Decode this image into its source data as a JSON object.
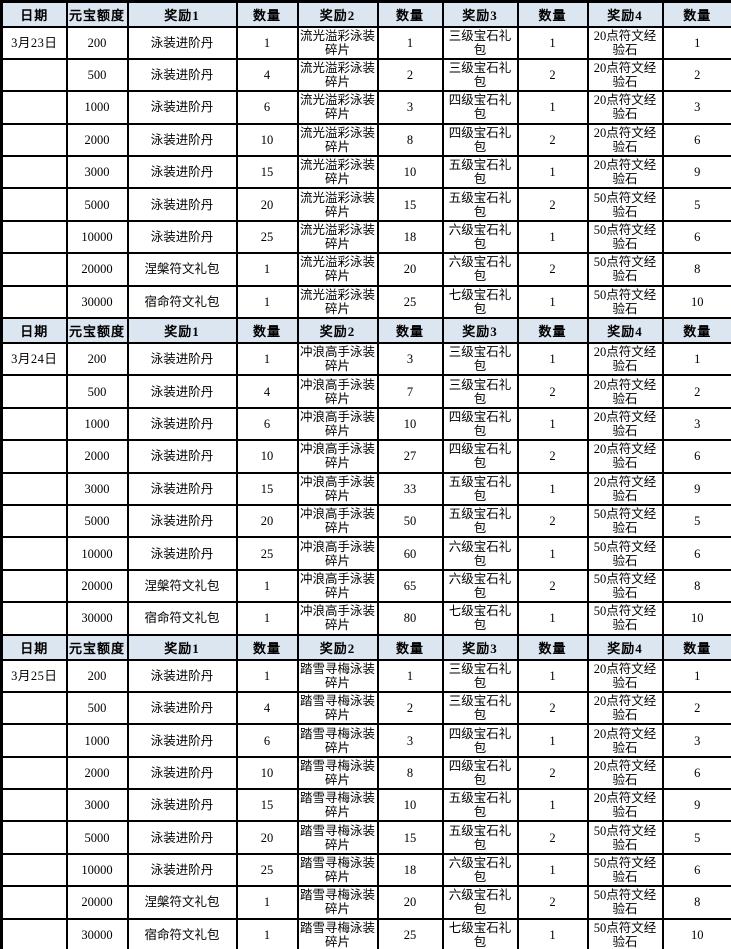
{
  "table": {
    "columns": [
      "日期",
      "元宝额度",
      "奖励1",
      "数量",
      "奖励2",
      "数量",
      "奖励3",
      "数量",
      "奖励4",
      "数量"
    ],
    "sections": [
      {
        "date": "3月23日",
        "rows": [
          [
            "200",
            "泳装进阶丹",
            "1",
            "流光溢彩泳装碎片",
            "1",
            "三级宝石礼包",
            "1",
            "20点符文经验石",
            "1"
          ],
          [
            "500",
            "泳装进阶丹",
            "4",
            "流光溢彩泳装碎片",
            "2",
            "三级宝石礼包",
            "2",
            "20点符文经验石",
            "2"
          ],
          [
            "1000",
            "泳装进阶丹",
            "6",
            "流光溢彩泳装碎片",
            "3",
            "四级宝石礼包",
            "1",
            "20点符文经验石",
            "3"
          ],
          [
            "2000",
            "泳装进阶丹",
            "10",
            "流光溢彩泳装碎片",
            "8",
            "四级宝石礼包",
            "2",
            "20点符文经验石",
            "6"
          ],
          [
            "3000",
            "泳装进阶丹",
            "15",
            "流光溢彩泳装碎片",
            "10",
            "五级宝石礼包",
            "1",
            "20点符文经验石",
            "9"
          ],
          [
            "5000",
            "泳装进阶丹",
            "20",
            "流光溢彩泳装碎片",
            "15",
            "五级宝石礼包",
            "2",
            "50点符文经验石",
            "5"
          ],
          [
            "10000",
            "泳装进阶丹",
            "25",
            "流光溢彩泳装碎片",
            "18",
            "六级宝石礼包",
            "1",
            "50点符文经验石",
            "6"
          ],
          [
            "20000",
            "涅槃符文礼包",
            "1",
            "流光溢彩泳装碎片",
            "20",
            "六级宝石礼包",
            "2",
            "50点符文经验石",
            "8"
          ],
          [
            "30000",
            "宿命符文礼包",
            "1",
            "流光溢彩泳装碎片",
            "25",
            "七级宝石礼包",
            "1",
            "50点符文经验石",
            "10"
          ]
        ]
      },
      {
        "date": "3月24日",
        "rows": [
          [
            "200",
            "泳装进阶丹",
            "1",
            "冲浪高手泳装碎片",
            "3",
            "三级宝石礼包",
            "1",
            "20点符文经验石",
            "1"
          ],
          [
            "500",
            "泳装进阶丹",
            "4",
            "冲浪高手泳装碎片",
            "7",
            "三级宝石礼包",
            "2",
            "20点符文经验石",
            "2"
          ],
          [
            "1000",
            "泳装进阶丹",
            "6",
            "冲浪高手泳装碎片",
            "10",
            "四级宝石礼包",
            "1",
            "20点符文经验石",
            "3"
          ],
          [
            "2000",
            "泳装进阶丹",
            "10",
            "冲浪高手泳装碎片",
            "27",
            "四级宝石礼包",
            "2",
            "20点符文经验石",
            "6"
          ],
          [
            "3000",
            "泳装进阶丹",
            "15",
            "冲浪高手泳装碎片",
            "33",
            "五级宝石礼包",
            "1",
            "20点符文经验石",
            "9"
          ],
          [
            "5000",
            "泳装进阶丹",
            "20",
            "冲浪高手泳装碎片",
            "50",
            "五级宝石礼包",
            "2",
            "50点符文经验石",
            "5"
          ],
          [
            "10000",
            "泳装进阶丹",
            "25",
            "冲浪高手泳装碎片",
            "60",
            "六级宝石礼包",
            "1",
            "50点符文经验石",
            "6"
          ],
          [
            "20000",
            "涅槃符文礼包",
            "1",
            "冲浪高手泳装碎片",
            "65",
            "六级宝石礼包",
            "2",
            "50点符文经验石",
            "8"
          ],
          [
            "30000",
            "宿命符文礼包",
            "1",
            "冲浪高手泳装碎片",
            "80",
            "七级宝石礼包",
            "1",
            "50点符文经验石",
            "10"
          ]
        ]
      },
      {
        "date": "3月25日",
        "rows": [
          [
            "200",
            "泳装进阶丹",
            "1",
            "踏雪寻梅泳装碎片",
            "1",
            "三级宝石礼包",
            "1",
            "20点符文经验石",
            "1"
          ],
          [
            "500",
            "泳装进阶丹",
            "4",
            "踏雪寻梅泳装碎片",
            "2",
            "三级宝石礼包",
            "2",
            "20点符文经验石",
            "2"
          ],
          [
            "1000",
            "泳装进阶丹",
            "6",
            "踏雪寻梅泳装碎片",
            "3",
            "四级宝石礼包",
            "1",
            "20点符文经验石",
            "3"
          ],
          [
            "2000",
            "泳装进阶丹",
            "10",
            "踏雪寻梅泳装碎片",
            "8",
            "四级宝石礼包",
            "2",
            "20点符文经验石",
            "6"
          ],
          [
            "3000",
            "泳装进阶丹",
            "15",
            "踏雪寻梅泳装碎片",
            "10",
            "五级宝石礼包",
            "1",
            "20点符文经验石",
            "9"
          ],
          [
            "5000",
            "泳装进阶丹",
            "20",
            "踏雪寻梅泳装碎片",
            "15",
            "五级宝石礼包",
            "2",
            "50点符文经验石",
            "5"
          ],
          [
            "10000",
            "泳装进阶丹",
            "25",
            "踏雪寻梅泳装碎片",
            "18",
            "六级宝石礼包",
            "1",
            "50点符文经验石",
            "6"
          ],
          [
            "20000",
            "涅槃符文礼包",
            "1",
            "踏雪寻梅泳装碎片",
            "20",
            "六级宝石礼包",
            "2",
            "50点符文经验石",
            "8"
          ],
          [
            "30000",
            "宿命符文礼包",
            "1",
            "踏雪寻梅泳装碎片",
            "25",
            "七级宝石礼包",
            "1",
            "50点符文经验石",
            "10"
          ]
        ]
      }
    ]
  },
  "colors": {
    "header_bg": "#DCE6F1",
    "cell_bg": "#FFFFFF",
    "border": "#000000",
    "text": "#000000"
  }
}
